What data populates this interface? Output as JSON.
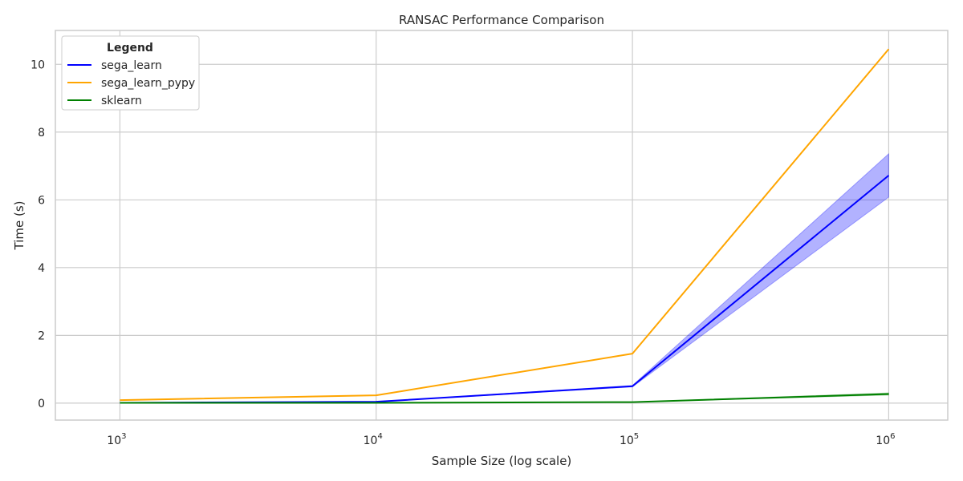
{
  "chart_data": {
    "type": "line",
    "title": "RANSAC Performance Comparison",
    "xlabel": "Sample Size (log scale)",
    "ylabel": "Time (s)",
    "x_scale": "log",
    "x": [
      1000,
      10000,
      100000,
      1000000
    ],
    "xlim": [
      560,
      1700000
    ],
    "ylim": [
      -0.5,
      11.0
    ],
    "x_ticks": [
      {
        "value": 1000,
        "base": "10",
        "exp": "3"
      },
      {
        "value": 10000,
        "base": "10",
        "exp": "4"
      },
      {
        "value": 100000,
        "base": "10",
        "exp": "5"
      },
      {
        "value": 1000000,
        "base": "10",
        "exp": "6"
      }
    ],
    "y_ticks": [
      {
        "value": 0,
        "label": "0"
      },
      {
        "value": 2,
        "label": "2"
      },
      {
        "value": 4,
        "label": "4"
      },
      {
        "value": 6,
        "label": "6"
      },
      {
        "value": 8,
        "label": "8"
      },
      {
        "value": 10,
        "label": "10"
      }
    ],
    "grid": true,
    "legend": {
      "title": "Legend",
      "position": "top-left"
    },
    "series": [
      {
        "name": "sega_learn",
        "color": "#0000ff",
        "values": [
          0.01,
          0.04,
          0.5,
          6.72
        ],
        "lower": [
          0.01,
          0.04,
          0.48,
          6.08
        ],
        "upper": [
          0.01,
          0.04,
          0.52,
          7.36
        ]
      },
      {
        "name": "sega_learn_pypy",
        "color": "#ffa500",
        "values": [
          0.09,
          0.23,
          1.46,
          10.45
        ]
      },
      {
        "name": "sklearn",
        "color": "#008000",
        "values": [
          0.01,
          0.01,
          0.03,
          0.27
        ],
        "lower": [
          0.01,
          0.01,
          0.03,
          0.24
        ],
        "upper": [
          0.01,
          0.01,
          0.03,
          0.3
        ]
      }
    ]
  }
}
